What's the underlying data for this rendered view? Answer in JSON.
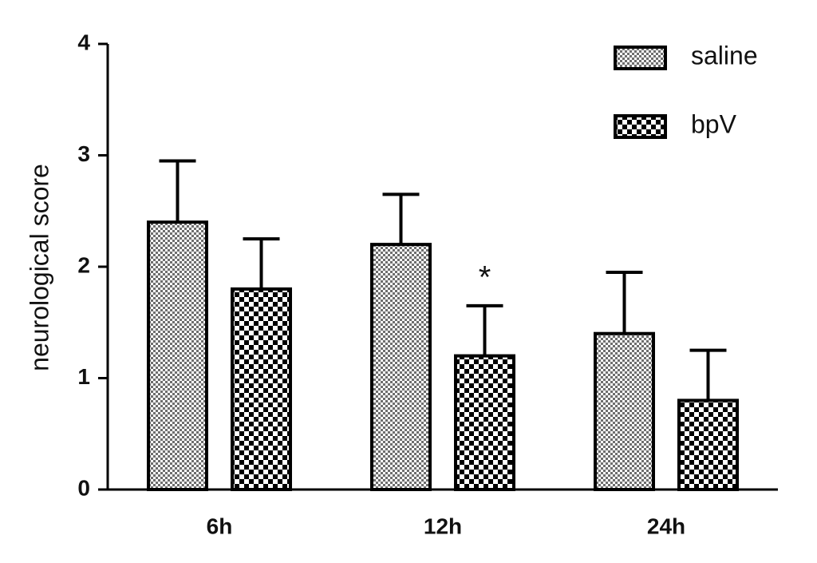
{
  "chart_data": {
    "type": "bar",
    "y_label": "neurological score",
    "categories": [
      "6h",
      "12h",
      "24h"
    ],
    "series": [
      {
        "name": "saline",
        "color": "#6e6e6e",
        "values": [
          2.4,
          2.2,
          1.4
        ],
        "errors": [
          0.55,
          0.45,
          0.55
        ]
      },
      {
        "name": "bpV",
        "color": "#000000",
        "values": [
          1.8,
          1.2,
          0.8
        ],
        "errors": [
          0.45,
          0.45,
          0.45
        ]
      }
    ],
    "annotations": [
      {
        "text": "*"
      }
    ],
    "ylim": [
      0,
      4
    ],
    "yticks": [
      0,
      1,
      2,
      3,
      4
    ],
    "legend": "upper right"
  }
}
